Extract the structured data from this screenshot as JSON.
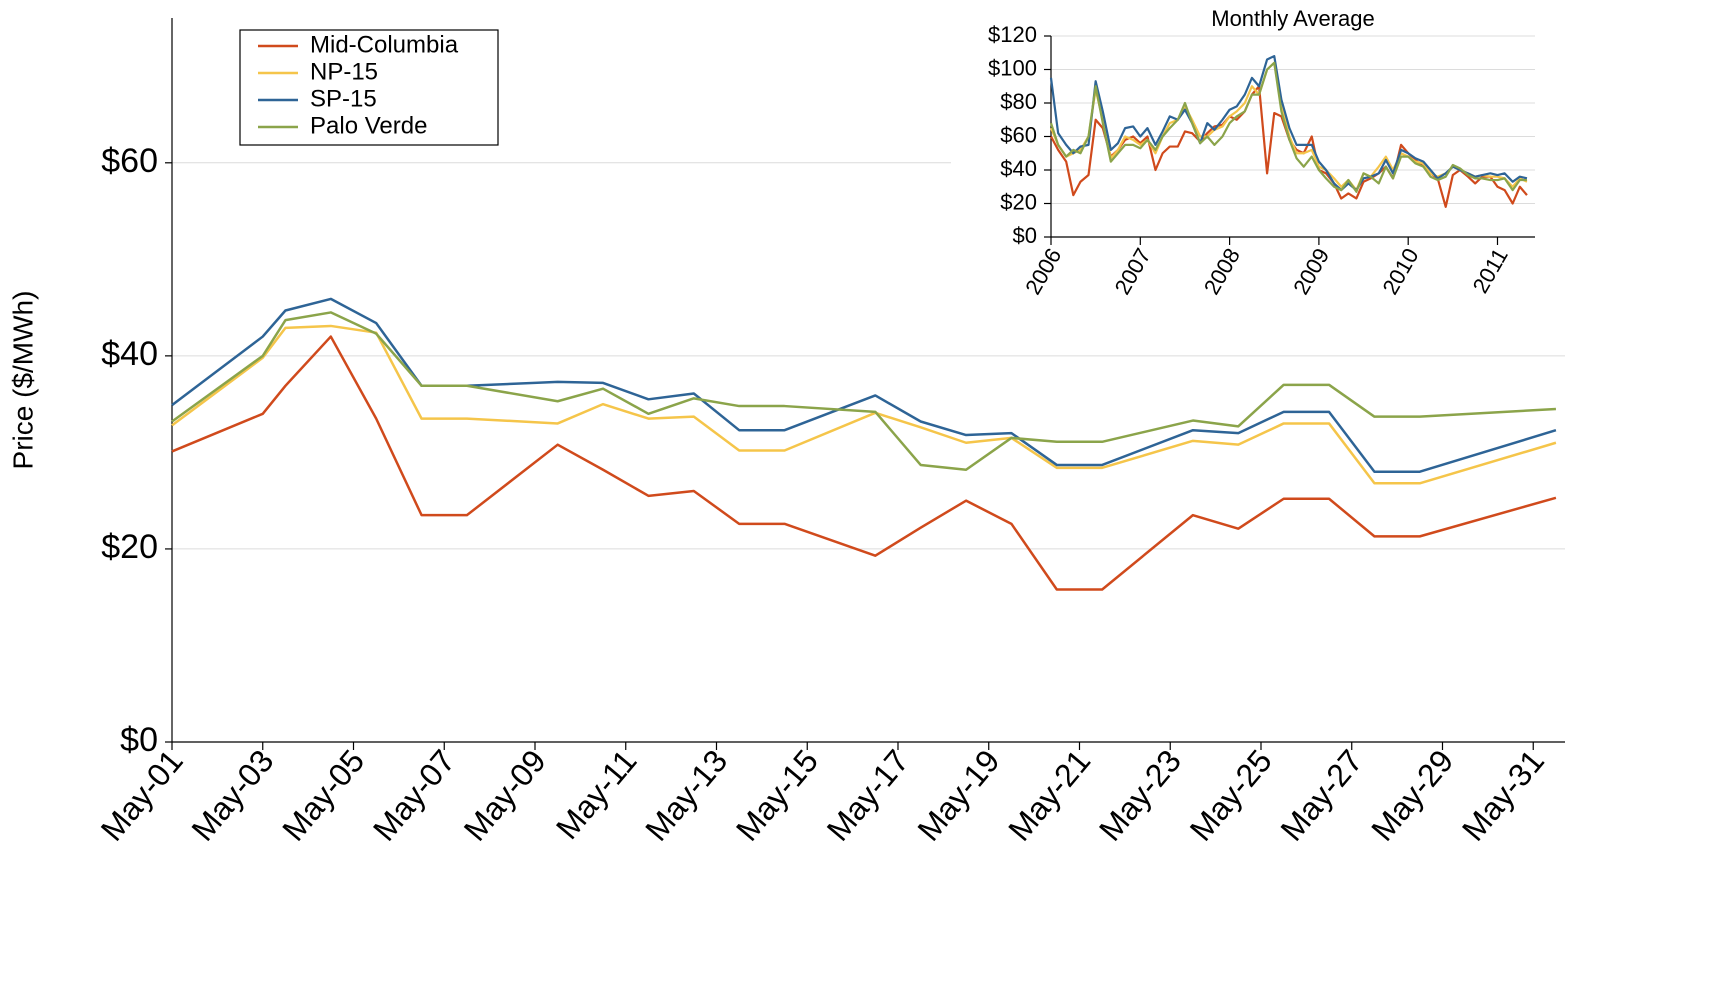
{
  "chart_data": [
    {
      "type": "line",
      "y_label": "Price ($/MWh)",
      "x": [
        1,
        3,
        3.5,
        4.5,
        5.5,
        6.5,
        7.5,
        9.5,
        10.5,
        11.5,
        12.5,
        13.5,
        14.5,
        16.5,
        17.5,
        18.5,
        19.5,
        20.5,
        21.5,
        23.5,
        24.5,
        25.5,
        26.5,
        27.5,
        28.5,
        31.5
      ],
      "xlim": [
        1,
        31.7
      ],
      "xticks": [
        {
          "value": 1,
          "label": "May-01"
        },
        {
          "value": 3,
          "label": "May-03"
        },
        {
          "value": 5,
          "label": "May-05"
        },
        {
          "value": 7,
          "label": "May-07"
        },
        {
          "value": 9,
          "label": "May-09"
        },
        {
          "value": 11,
          "label": "May-11"
        },
        {
          "value": 13,
          "label": "May-13"
        },
        {
          "value": 15,
          "label": "May-15"
        },
        {
          "value": 17,
          "label": "May-17"
        },
        {
          "value": 19,
          "label": "May-19"
        },
        {
          "value": 21,
          "label": "May-21"
        },
        {
          "value": 23,
          "label": "May-23"
        },
        {
          "value": 25,
          "label": "May-25"
        },
        {
          "value": 27,
          "label": "May-27"
        },
        {
          "value": 29,
          "label": "May-29"
        },
        {
          "value": 31,
          "label": "May-31"
        }
      ],
      "ylim": [
        0,
        75
      ],
      "yticks": [
        {
          "value": 0,
          "label": "$0"
        },
        {
          "value": 20,
          "label": "$20"
        },
        {
          "value": 40,
          "label": "$40"
        },
        {
          "value": 60,
          "label": "$60"
        }
      ],
      "grid": true,
      "legend": "upper left",
      "series": [
        {
          "name": "Mid-Columbia",
          "color": "#d04a1c",
          "values": [
            30.1,
            34.0,
            36.9,
            42.0,
            33.5,
            23.5,
            23.5,
            30.8,
            28.2,
            25.5,
            26.0,
            22.6,
            22.6,
            19.3,
            22.2,
            25.0,
            22.6,
            15.8,
            15.8,
            23.5,
            22.1,
            25.2,
            25.2,
            21.3,
            21.3,
            25.3
          ]
        },
        {
          "name": "NP-15",
          "color": "#f5c54a",
          "values": [
            32.8,
            39.8,
            42.9,
            43.1,
            42.4,
            33.5,
            33.5,
            33.0,
            35.0,
            33.5,
            33.7,
            30.2,
            30.2,
            34.1,
            32.6,
            31.0,
            31.5,
            28.4,
            28.4,
            31.2,
            30.8,
            33.0,
            33.0,
            26.8,
            26.8,
            31.0
          ]
        },
        {
          "name": "SP-15",
          "color": "#2e6496",
          "values": [
            34.9,
            42.0,
            44.7,
            45.9,
            43.4,
            36.9,
            36.9,
            37.3,
            37.2,
            35.5,
            36.1,
            32.3,
            32.3,
            35.9,
            33.2,
            31.8,
            32.0,
            28.7,
            28.7,
            32.3,
            32.0,
            34.2,
            34.2,
            28.0,
            28.0,
            32.3
          ]
        },
        {
          "name": "Palo Verde",
          "color": "#8ba44a",
          "values": [
            33.2,
            40.0,
            43.7,
            44.5,
            42.3,
            36.9,
            36.9,
            35.3,
            36.6,
            34.0,
            35.6,
            34.8,
            34.8,
            34.2,
            28.7,
            28.2,
            31.5,
            31.1,
            31.1,
            33.3,
            32.7,
            37.0,
            37.0,
            33.7,
            33.7,
            34.5
          ]
        }
      ]
    },
    {
      "type": "line",
      "title": "Monthly Average",
      "x": [
        2006.0,
        2006.08,
        2006.17,
        2006.25,
        2006.33,
        2006.42,
        2006.5,
        2006.58,
        2006.67,
        2006.75,
        2006.83,
        2006.92,
        2007.0,
        2007.08,
        2007.17,
        2007.25,
        2007.33,
        2007.42,
        2007.5,
        2007.58,
        2007.67,
        2007.75,
        2007.83,
        2007.92,
        2008.0,
        2008.08,
        2008.17,
        2008.25,
        2008.33,
        2008.42,
        2008.5,
        2008.58,
        2008.67,
        2008.75,
        2008.83,
        2008.92,
        2009.0,
        2009.08,
        2009.17,
        2009.25,
        2009.33,
        2009.42,
        2009.5,
        2009.58,
        2009.67,
        2009.75,
        2009.83,
        2009.92,
        2010.0,
        2010.08,
        2010.17,
        2010.25,
        2010.33,
        2010.42,
        2010.5,
        2010.58,
        2010.67,
        2010.75,
        2010.83,
        2010.92,
        2011.0,
        2011.08,
        2011.17,
        2011.25,
        2011.33
      ],
      "xlim": [
        2006,
        2011.42
      ],
      "xticks": [
        2006,
        2007,
        2008,
        2009,
        2010,
        2011
      ],
      "ylim": [
        0,
        120
      ],
      "yticks": [
        {
          "value": 0,
          "label": "$0"
        },
        {
          "value": 20,
          "label": "$20"
        },
        {
          "value": 40,
          "label": "$40"
        },
        {
          "value": 60,
          "label": "$60"
        },
        {
          "value": 80,
          "label": "$80"
        },
        {
          "value": 100,
          "label": "$100"
        },
        {
          "value": 120,
          "label": "$120"
        }
      ],
      "grid": true,
      "series": [
        {
          "color": "#d04a1c",
          "values": [
            60,
            52,
            45,
            25,
            33,
            37,
            70,
            65,
            48,
            52,
            58,
            60,
            56,
            60,
            40,
            50,
            54,
            54,
            63,
            62,
            57,
            62,
            66,
            67,
            72,
            70,
            75,
            85,
            90,
            38,
            74,
            72,
            58,
            52,
            50,
            60,
            40,
            38,
            32,
            23,
            26,
            23,
            33,
            35,
            38,
            42,
            35,
            55,
            50,
            46,
            42,
            38,
            35,
            18,
            37,
            40,
            36,
            32,
            36,
            36,
            30,
            28,
            20,
            30,
            25
          ]
        },
        {
          "color": "#f5c54a",
          "values": [
            65,
            55,
            48,
            50,
            52,
            60,
            88,
            70,
            47,
            52,
            60,
            58,
            55,
            58,
            50,
            60,
            68,
            70,
            78,
            70,
            60,
            60,
            64,
            66,
            72,
            75,
            80,
            90,
            85,
            100,
            104,
            78,
            60,
            50,
            50,
            52,
            42,
            40,
            35,
            30,
            34,
            28,
            38,
            36,
            42,
            48,
            40,
            50,
            48,
            45,
            44,
            38,
            36,
            38,
            42,
            40,
            38,
            36,
            37,
            36,
            36,
            35,
            30,
            35,
            33
          ]
        },
        {
          "color": "#2e6496",
          "values": [
            95,
            62,
            55,
            50,
            54,
            55,
            93,
            75,
            52,
            56,
            65,
            66,
            60,
            65,
            55,
            63,
            72,
            70,
            76,
            68,
            56,
            68,
            64,
            70,
            76,
            78,
            85,
            95,
            90,
            106,
            108,
            82,
            65,
            55,
            55,
            55,
            45,
            40,
            32,
            28,
            32,
            28,
            35,
            36,
            38,
            46,
            38,
            52,
            50,
            47,
            45,
            40,
            35,
            38,
            42,
            40,
            38,
            36,
            37,
            38,
            37,
            38,
            33,
            36,
            35
          ]
        },
        {
          "color": "#8ba44a",
          "values": [
            68,
            55,
            48,
            52,
            50,
            60,
            90,
            68,
            45,
            50,
            55,
            55,
            53,
            58,
            52,
            60,
            65,
            70,
            80,
            68,
            56,
            60,
            55,
            60,
            68,
            72,
            75,
            85,
            85,
            100,
            104,
            75,
            58,
            47,
            42,
            48,
            40,
            35,
            30,
            28,
            34,
            27,
            38,
            36,
            32,
            42,
            35,
            48,
            48,
            44,
            42,
            36,
            34,
            36,
            43,
            41,
            37,
            35,
            35,
            34,
            34,
            35,
            28,
            34,
            34
          ]
        }
      ]
    }
  ]
}
